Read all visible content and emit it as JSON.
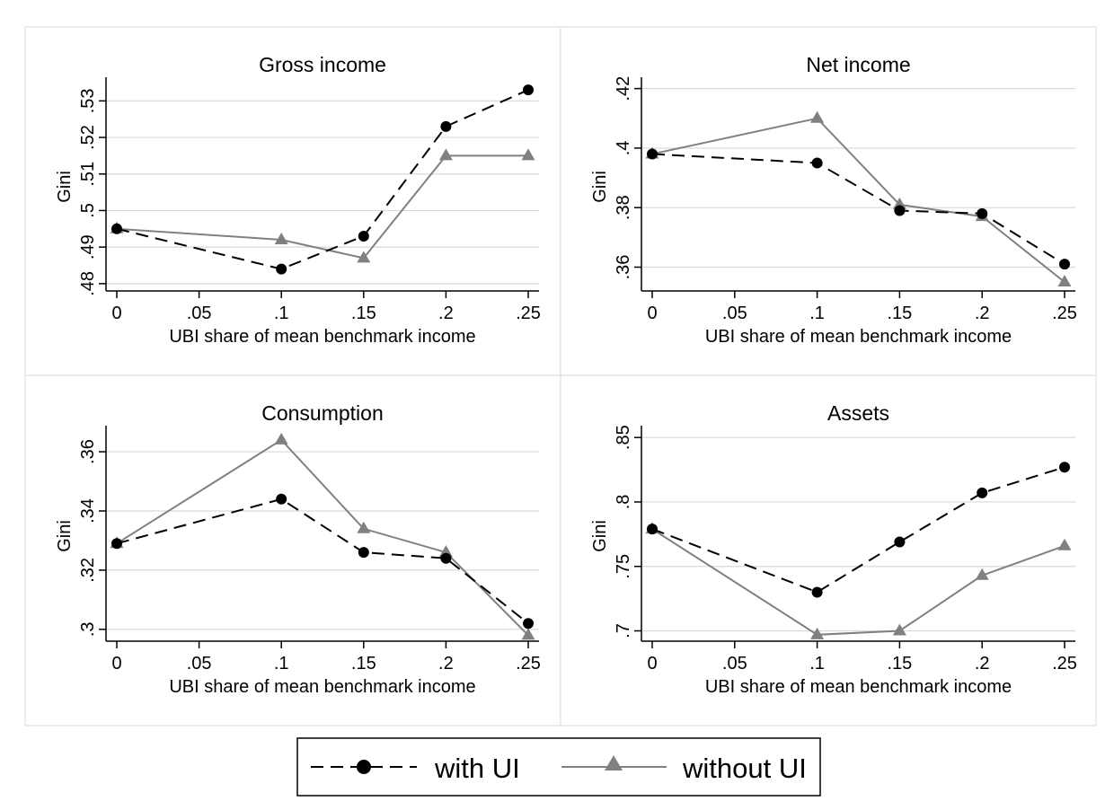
{
  "legend": {
    "with_ui_label": "with UI",
    "without_ui_label": "without UI",
    "placement": "bottom-center"
  },
  "colors": {
    "with_ui": "#000000",
    "without_ui": "#808080",
    "grid": "#d9d9d9",
    "panel_border": "#e6e6e6"
  },
  "chart_data": [
    {
      "type": "line",
      "title": "Gross income",
      "xlabel": "UBI share of mean benchmark income",
      "ylabel": "Gini",
      "x": [
        0,
        0.05,
        0.1,
        0.15,
        0.2,
        0.25
      ],
      "xticks": [
        0,
        0.05,
        0.1,
        0.15,
        0.2,
        0.25
      ],
      "xtick_labels": [
        "0",
        ".05",
        ".1",
        ".15",
        ".2",
        ".25"
      ],
      "yticks": [
        0.48,
        0.49,
        0.5,
        0.51,
        0.52,
        0.53
      ],
      "ytick_labels": [
        ".48",
        ".49",
        ".5",
        ".51",
        ".52",
        ".53"
      ],
      "xlim": [
        0,
        0.25
      ],
      "ylim": [
        0.478,
        0.535
      ],
      "grid": true,
      "series": [
        {
          "name": "with UI",
          "x": [
            0,
            0.1,
            0.15,
            0.2,
            0.25
          ],
          "values": [
            0.495,
            0.484,
            0.493,
            0.523,
            0.533
          ]
        },
        {
          "name": "without UI",
          "x": [
            0,
            0.1,
            0.15,
            0.2,
            0.25
          ],
          "values": [
            0.495,
            0.492,
            0.487,
            0.515,
            0.515
          ]
        }
      ]
    },
    {
      "type": "line",
      "title": "Net income",
      "xlabel": "UBI share of mean benchmark income",
      "ylabel": "Gini",
      "xticks": [
        0,
        0.05,
        0.1,
        0.15,
        0.2,
        0.25
      ],
      "xtick_labels": [
        "0",
        ".05",
        ".1",
        ".15",
        ".2",
        ".25"
      ],
      "yticks": [
        0.36,
        0.38,
        0.4,
        0.42
      ],
      "ytick_labels": [
        ".36",
        ".38",
        ".4",
        ".42"
      ],
      "xlim": [
        0,
        0.25
      ],
      "ylim": [
        0.352,
        0.422
      ],
      "grid": true,
      "series": [
        {
          "name": "with UI",
          "x": [
            0,
            0.1,
            0.15,
            0.2,
            0.25
          ],
          "values": [
            0.398,
            0.395,
            0.379,
            0.378,
            0.361
          ]
        },
        {
          "name": "without UI",
          "x": [
            0,
            0.1,
            0.15,
            0.2,
            0.25
          ],
          "values": [
            0.398,
            0.41,
            0.381,
            0.377,
            0.355
          ]
        }
      ]
    },
    {
      "type": "line",
      "title": "Consumption",
      "xlabel": "UBI share of mean benchmark income",
      "ylabel": "Gini",
      "xticks": [
        0,
        0.05,
        0.1,
        0.15,
        0.2,
        0.25
      ],
      "xtick_labels": [
        "0",
        ".05",
        ".1",
        ".15",
        ".2",
        ".25"
      ],
      "yticks": [
        0.3,
        0.32,
        0.34,
        0.36
      ],
      "ytick_labels": [
        ".3",
        ".32",
        ".34",
        ".36"
      ],
      "xlim": [
        0,
        0.25
      ],
      "ylim": [
        0.296,
        0.367
      ],
      "grid": true,
      "series": [
        {
          "name": "with UI",
          "x": [
            0,
            0.1,
            0.15,
            0.2,
            0.25
          ],
          "values": [
            0.329,
            0.344,
            0.326,
            0.324,
            0.302
          ]
        },
        {
          "name": "without UI",
          "x": [
            0,
            0.1,
            0.15,
            0.2,
            0.25
          ],
          "values": [
            0.329,
            0.364,
            0.334,
            0.326,
            0.298
          ]
        }
      ]
    },
    {
      "type": "line",
      "title": "Assets",
      "xlabel": "UBI share of mean benchmark income",
      "ylabel": "Gini",
      "xticks": [
        0,
        0.05,
        0.1,
        0.15,
        0.2,
        0.25
      ],
      "xtick_labels": [
        "0",
        ".05",
        ".1",
        ".15",
        ".2",
        ".25"
      ],
      "yticks": [
        0.7,
        0.75,
        0.8,
        0.85
      ],
      "ytick_labels": [
        ".7",
        ".75",
        ".8",
        ".85"
      ],
      "xlim": [
        0,
        0.25
      ],
      "ylim": [
        0.692,
        0.855
      ],
      "grid": true,
      "series": [
        {
          "name": "with UI",
          "x": [
            0,
            0.1,
            0.15,
            0.2,
            0.25
          ],
          "values": [
            0.779,
            0.73,
            0.769,
            0.807,
            0.827
          ]
        },
        {
          "name": "without UI",
          "x": [
            0,
            0.1,
            0.15,
            0.2,
            0.25
          ],
          "values": [
            0.779,
            0.697,
            0.7,
            0.743,
            0.766
          ]
        }
      ]
    }
  ]
}
